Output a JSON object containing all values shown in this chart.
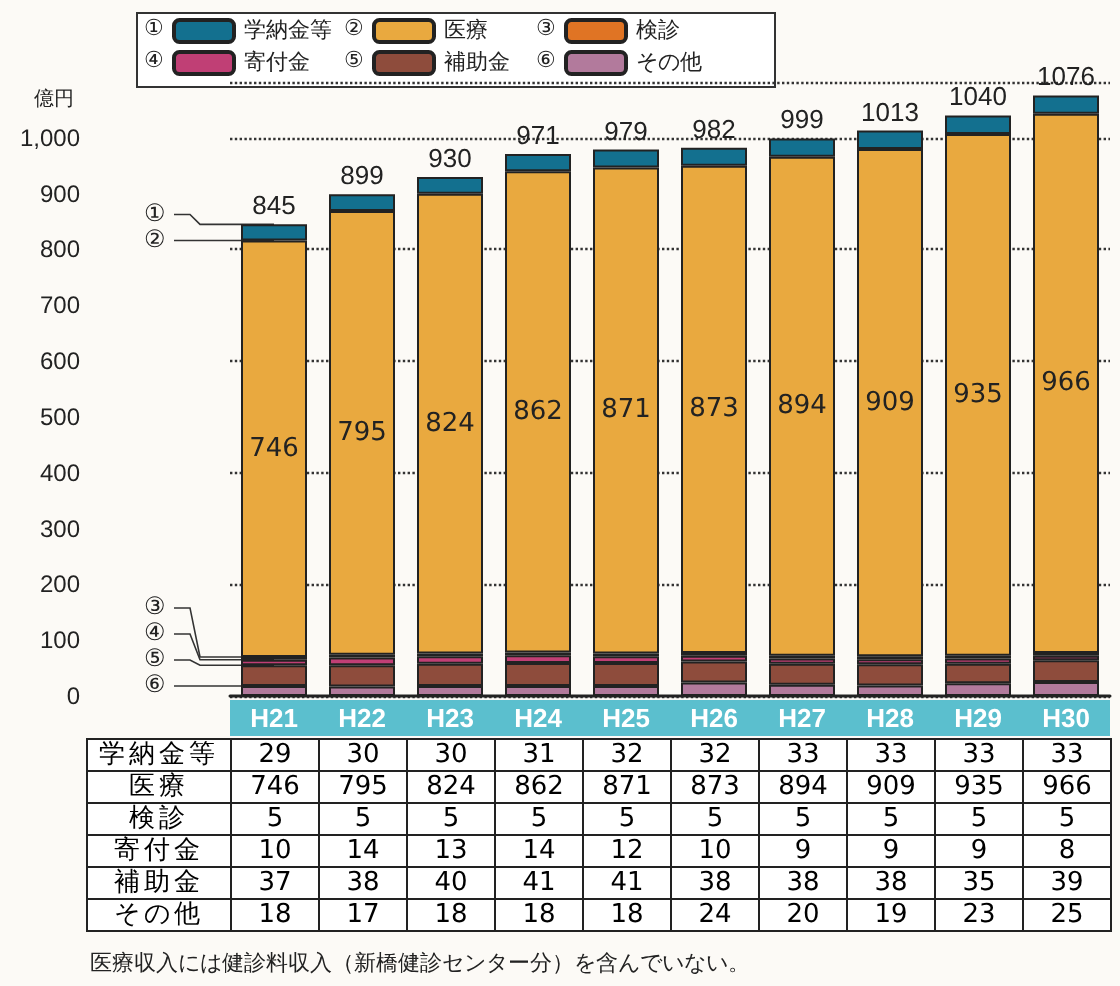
{
  "chart_data": {
    "type": "bar",
    "stacked": true,
    "ylabel": "億円",
    "categories": [
      "H21",
      "H22",
      "H23",
      "H24",
      "H25",
      "H26",
      "H27",
      "H28",
      "H29",
      "H30"
    ],
    "series": [
      {
        "name": "その他",
        "color": "#b27a9c",
        "values": [
          18,
          17,
          18,
          18,
          18,
          24,
          20,
          19,
          23,
          25
        ]
      },
      {
        "name": "補助金",
        "color": "#8e4c3c",
        "values": [
          37,
          38,
          40,
          41,
          41,
          38,
          38,
          38,
          35,
          39
        ]
      },
      {
        "name": "寄付金",
        "color": "#c03f75",
        "values": [
          10,
          14,
          13,
          14,
          12,
          10,
          9,
          9,
          9,
          8
        ]
      },
      {
        "name": "検診",
        "color": "#e07424",
        "values": [
          5,
          5,
          5,
          5,
          5,
          5,
          5,
          5,
          5,
          5
        ]
      },
      {
        "name": "医療",
        "color": "#e9a93f",
        "values": [
          746,
          795,
          824,
          862,
          871,
          873,
          894,
          909,
          935,
          966
        ],
        "value_labels": [
          "746",
          "795",
          "824",
          "862",
          "871",
          "873",
          "894",
          "909",
          "935",
          "966"
        ]
      },
      {
        "name": "学納金等",
        "color": "#13708f",
        "values": [
          29,
          30,
          30,
          31,
          32,
          32,
          33,
          33,
          33,
          33
        ]
      }
    ],
    "totals": [
      "845",
      "899",
      "930",
      "971",
      "979",
      "982",
      "999",
      "1013",
      "1040",
      "1076"
    ],
    "data_labels": true,
    "ylim": [
      0,
      1100
    ],
    "yticks": [
      0,
      100,
      200,
      300,
      400,
      500,
      600,
      700,
      800,
      900,
      {
        "value": 1000,
        "label": "1,000"
      }
    ],
    "grid": "y",
    "legend": "top left",
    "annotations": [
      {
        "text": "①",
        "x": "H21",
        "y": 845
      },
      {
        "text": "②",
        "x": "H21",
        "y": 816
      },
      {
        "text": "③",
        "x": "H21",
        "y": 70
      },
      {
        "text": "④",
        "x": "H21",
        "y": 65
      },
      {
        "text": "⑤",
        "x": "H21",
        "y": 55
      },
      {
        "text": "⑥",
        "x": "H21",
        "y": 18
      },
      "医療収入には健診料収入（新橋健診センター分）を含んでいない。"
    ]
  }
}
